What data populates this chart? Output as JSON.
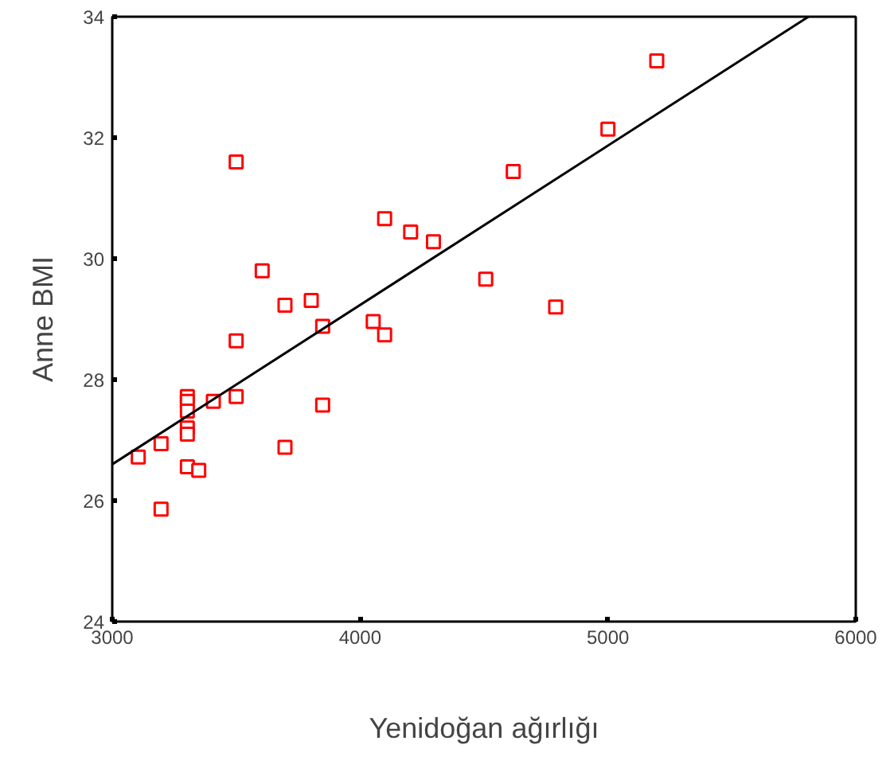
{
  "chart_data": {
    "type": "scatter",
    "xlabel": "Yenidoğan ağırlığı",
    "ylabel": "Anne BMI",
    "xlim": [
      3000,
      6000
    ],
    "xticks": [
      3000,
      4000,
      5000,
      6000
    ],
    "ylim": [
      24,
      34
    ],
    "yticks": [
      24,
      26,
      28,
      30,
      32,
      34
    ],
    "grid": false,
    "marker": "square",
    "series": [
      {
        "color": "#ff0000",
        "x": [
          3105,
          3197,
          3197,
          3303,
          3303,
          3303,
          3303,
          3303,
          3303,
          3349,
          3408,
          3500,
          3500,
          3500,
          3605,
          3697,
          3697,
          3803,
          3849,
          3849,
          4053,
          4099,
          4099,
          4204,
          4296,
          4507,
          4618,
          4789,
          5000,
          5197
        ],
        "values": [
          26.72,
          26.94,
          25.86,
          27.72,
          27.64,
          27.48,
          27.2,
          27.1,
          26.56,
          26.5,
          27.64,
          27.72,
          28.64,
          31.6,
          29.8,
          29.23,
          26.88,
          29.31,
          28.88,
          27.58,
          28.96,
          28.74,
          30.66,
          30.44,
          30.28,
          29.66,
          31.44,
          29.2,
          32.14,
          33.27
        ]
      },
      {
        "type": "line",
        "color": "#000000",
        "marker": "none",
        "line_style": "solid",
        "x": [
          3000,
          5809
        ],
        "values": [
          26.6,
          34
        ]
      }
    ]
  }
}
